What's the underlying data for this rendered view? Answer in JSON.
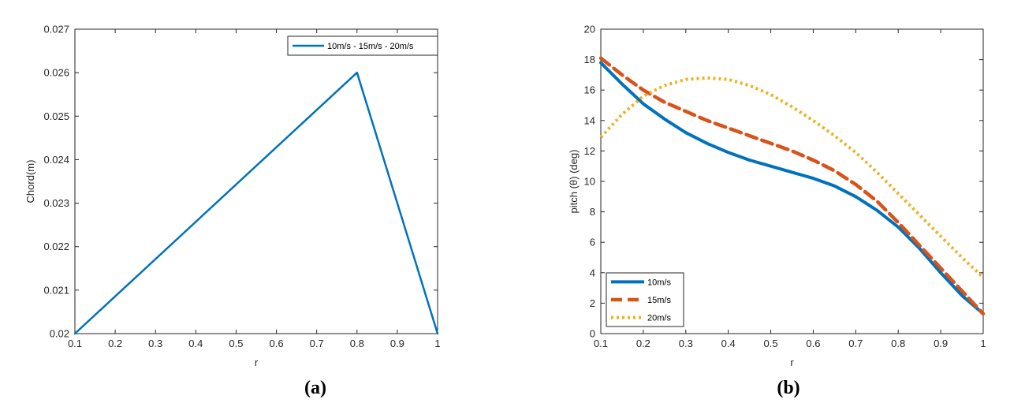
{
  "captions": {
    "a": "(a)",
    "b": "(b)"
  },
  "chart_data": [
    {
      "type": "line",
      "xlabel": "r",
      "ylabel": "Chord(m)",
      "xlim": [
        0.1,
        1
      ],
      "ylim": [
        0.02,
        0.027
      ],
      "xticks": [
        0.1,
        0.2,
        0.3,
        0.4,
        0.5,
        0.6,
        0.7,
        0.8,
        0.9,
        1
      ],
      "xtick_labels": [
        "0.1",
        "0.2",
        "0.3",
        "0.4",
        "0.5",
        "0.6",
        "0.7",
        "0.8",
        "0.9",
        "1"
      ],
      "yticks": [
        0.02,
        0.021,
        0.022,
        0.023,
        0.024,
        0.025,
        0.026,
        0.027
      ],
      "ytick_labels": [
        "0.02",
        "0.021",
        "0.022",
        "0.023",
        "0.024",
        "0.025",
        "0.026",
        "0.027"
      ],
      "legend_position": "top-right",
      "series": [
        {
          "name": "10m/s - 15m/s - 20m/s",
          "color": "#0072BD",
          "style": "solid",
          "x": [
            0.1,
            0.8,
            1.0
          ],
          "y": [
            0.02,
            0.026,
            0.02
          ]
        }
      ]
    },
    {
      "type": "line",
      "xlabel": "r",
      "ylabel": "pitch (θ) (deg)",
      "xlim": [
        0.1,
        1
      ],
      "ylim": [
        0,
        20
      ],
      "xticks": [
        0.1,
        0.2,
        0.3,
        0.4,
        0.5,
        0.6,
        0.7,
        0.8,
        0.9,
        1
      ],
      "xtick_labels": [
        "0.1",
        "0.2",
        "0.3",
        "0.4",
        "0.5",
        "0.6",
        "0.7",
        "0.8",
        "0.9",
        "1"
      ],
      "yticks": [
        0,
        2,
        4,
        6,
        8,
        10,
        12,
        14,
        16,
        18,
        20
      ],
      "ytick_labels": [
        "0",
        "2",
        "4",
        "6",
        "8",
        "10",
        "12",
        "14",
        "16",
        "18",
        "20"
      ],
      "legend_position": "bottom-left",
      "series": [
        {
          "name": "10m/s",
          "color": "#0072BD",
          "style": "solid",
          "x": [
            0.1,
            0.15,
            0.2,
            0.25,
            0.3,
            0.35,
            0.4,
            0.45,
            0.5,
            0.55,
            0.6,
            0.65,
            0.7,
            0.75,
            0.8,
            0.85,
            0.9,
            0.95,
            1.0
          ],
          "y": [
            17.8,
            16.4,
            15.1,
            14.1,
            13.2,
            12.5,
            11.9,
            11.4,
            11.0,
            10.6,
            10.2,
            9.7,
            9.0,
            8.1,
            7.0,
            5.6,
            4.0,
            2.5,
            1.3
          ]
        },
        {
          "name": "15m/s",
          "color": "#D95319",
          "style": "dashed",
          "x": [
            0.1,
            0.15,
            0.2,
            0.25,
            0.3,
            0.35,
            0.4,
            0.45,
            0.5,
            0.55,
            0.6,
            0.65,
            0.7,
            0.75,
            0.8,
            0.85,
            0.9,
            0.95,
            1.0
          ],
          "y": [
            18.1,
            17.0,
            16.0,
            15.2,
            14.6,
            14.0,
            13.5,
            13.0,
            12.5,
            12.0,
            11.4,
            10.7,
            9.8,
            8.7,
            7.3,
            5.8,
            4.3,
            2.8,
            1.3
          ]
        },
        {
          "name": "20m/s",
          "color": "#EDB120",
          "style": "dotted",
          "x": [
            0.1,
            0.15,
            0.2,
            0.25,
            0.3,
            0.35,
            0.4,
            0.45,
            0.5,
            0.55,
            0.6,
            0.65,
            0.7,
            0.75,
            0.8,
            0.85,
            0.9,
            0.95,
            1.0
          ],
          "y": [
            12.9,
            14.4,
            15.6,
            16.3,
            16.7,
            16.8,
            16.7,
            16.3,
            15.7,
            14.9,
            14.0,
            13.0,
            11.9,
            10.6,
            9.2,
            7.8,
            6.4,
            5.0,
            3.7
          ]
        }
      ]
    }
  ]
}
